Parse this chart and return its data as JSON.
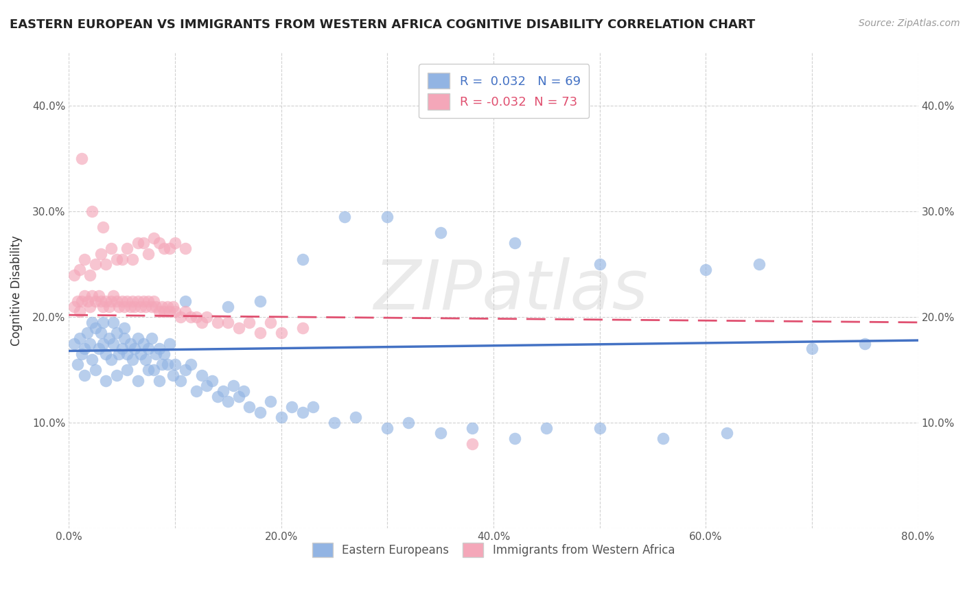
{
  "title": "EASTERN EUROPEAN VS IMMIGRANTS FROM WESTERN AFRICA COGNITIVE DISABILITY CORRELATION CHART",
  "source": "Source: ZipAtlas.com",
  "ylabel": "Cognitive Disability",
  "xlim": [
    0.0,
    0.8
  ],
  "ylim": [
    0.0,
    0.45
  ],
  "xticks": [
    0.0,
    0.1,
    0.2,
    0.3,
    0.4,
    0.5,
    0.6,
    0.7,
    0.8
  ],
  "xticklabels": [
    "0.0%",
    "",
    "20.0%",
    "",
    "40.0%",
    "",
    "60.0%",
    "",
    "80.0%"
  ],
  "yticks": [
    0.0,
    0.1,
    0.2,
    0.3,
    0.4
  ],
  "yticklabels": [
    "",
    "10.0%",
    "20.0%",
    "30.0%",
    "40.0%"
  ],
  "blue_R": "0.032",
  "blue_N": "69",
  "pink_R": "-0.032",
  "pink_N": "73",
  "blue_color": "#92b4e3",
  "pink_color": "#f4a7b9",
  "blue_line_color": "#4472c4",
  "pink_line_color": "#e05070",
  "watermark": "ZIPatlas",
  "blue_trend": [
    0.168,
    0.178
  ],
  "pink_trend": [
    0.202,
    0.195
  ],
  "blue_scatter_x": [
    0.005,
    0.01,
    0.012,
    0.015,
    0.017,
    0.02,
    0.022,
    0.025,
    0.028,
    0.03,
    0.032,
    0.035,
    0.038,
    0.04,
    0.042,
    0.045,
    0.047,
    0.05,
    0.052,
    0.055,
    0.058,
    0.06,
    0.062,
    0.065,
    0.068,
    0.07,
    0.072,
    0.075,
    0.078,
    0.08,
    0.082,
    0.085,
    0.088,
    0.09,
    0.093,
    0.095,
    0.098,
    0.1,
    0.105,
    0.11,
    0.115,
    0.12,
    0.125,
    0.13,
    0.135,
    0.14,
    0.145,
    0.15,
    0.155,
    0.16,
    0.165,
    0.17,
    0.18,
    0.19,
    0.2,
    0.21,
    0.22,
    0.23,
    0.25,
    0.27,
    0.3,
    0.32,
    0.35,
    0.38,
    0.42,
    0.45,
    0.5,
    0.56,
    0.62
  ],
  "blue_scatter_y": [
    0.175,
    0.18,
    0.165,
    0.17,
    0.185,
    0.175,
    0.16,
    0.19,
    0.17,
    0.185,
    0.175,
    0.165,
    0.18,
    0.16,
    0.175,
    0.185,
    0.165,
    0.17,
    0.18,
    0.165,
    0.175,
    0.16,
    0.17,
    0.18,
    0.165,
    0.175,
    0.16,
    0.17,
    0.18,
    0.15,
    0.165,
    0.17,
    0.155,
    0.165,
    0.155,
    0.175,
    0.145,
    0.155,
    0.14,
    0.15,
    0.155,
    0.13,
    0.145,
    0.135,
    0.14,
    0.125,
    0.13,
    0.12,
    0.135,
    0.125,
    0.13,
    0.115,
    0.11,
    0.12,
    0.105,
    0.115,
    0.11,
    0.115,
    0.1,
    0.105,
    0.095,
    0.1,
    0.09,
    0.095,
    0.085,
    0.095,
    0.095,
    0.085,
    0.09
  ],
  "blue_scatter_x2": [
    0.008,
    0.015,
    0.025,
    0.035,
    0.045,
    0.055,
    0.065,
    0.075,
    0.085,
    0.022,
    0.032,
    0.042,
    0.052,
    0.11,
    0.15,
    0.18,
    0.22,
    0.26,
    0.3,
    0.35,
    0.42,
    0.5,
    0.6,
    0.65,
    0.7,
    0.75
  ],
  "blue_scatter_y2": [
    0.155,
    0.145,
    0.15,
    0.14,
    0.145,
    0.15,
    0.14,
    0.15,
    0.14,
    0.195,
    0.195,
    0.195,
    0.19,
    0.215,
    0.21,
    0.215,
    0.255,
    0.295,
    0.295,
    0.28,
    0.27,
    0.25,
    0.245,
    0.25,
    0.17,
    0.175
  ],
  "pink_scatter_x": [
    0.005,
    0.008,
    0.01,
    0.012,
    0.015,
    0.018,
    0.02,
    0.022,
    0.025,
    0.028,
    0.03,
    0.032,
    0.035,
    0.038,
    0.04,
    0.042,
    0.045,
    0.047,
    0.05,
    0.052,
    0.055,
    0.058,
    0.06,
    0.062,
    0.065,
    0.068,
    0.07,
    0.072,
    0.075,
    0.078,
    0.08,
    0.082,
    0.085,
    0.088,
    0.09,
    0.093,
    0.095,
    0.098,
    0.1,
    0.105,
    0.11,
    0.115,
    0.12,
    0.125,
    0.13,
    0.14,
    0.15,
    0.16,
    0.17,
    0.18,
    0.19,
    0.2,
    0.22
  ],
  "pink_scatter_y": [
    0.21,
    0.215,
    0.205,
    0.215,
    0.22,
    0.215,
    0.21,
    0.22,
    0.215,
    0.22,
    0.215,
    0.21,
    0.215,
    0.21,
    0.215,
    0.22,
    0.215,
    0.21,
    0.215,
    0.21,
    0.215,
    0.21,
    0.215,
    0.21,
    0.215,
    0.21,
    0.215,
    0.21,
    0.215,
    0.21,
    0.215,
    0.21,
    0.205,
    0.21,
    0.205,
    0.21,
    0.205,
    0.21,
    0.205,
    0.2,
    0.205,
    0.2,
    0.2,
    0.195,
    0.2,
    0.195,
    0.195,
    0.19,
    0.195,
    0.185,
    0.195,
    0.185,
    0.19
  ],
  "pink_scatter_x2": [
    0.005,
    0.01,
    0.015,
    0.02,
    0.025,
    0.03,
    0.035,
    0.04,
    0.045,
    0.05,
    0.055,
    0.06,
    0.065,
    0.07,
    0.075,
    0.08,
    0.085,
    0.09,
    0.095,
    0.1,
    0.11,
    0.012,
    0.022,
    0.032,
    0.38
  ],
  "pink_scatter_y2": [
    0.24,
    0.245,
    0.255,
    0.24,
    0.25,
    0.26,
    0.25,
    0.265,
    0.255,
    0.255,
    0.265,
    0.255,
    0.27,
    0.27,
    0.26,
    0.275,
    0.27,
    0.265,
    0.265,
    0.27,
    0.265,
    0.35,
    0.3,
    0.285,
    0.08
  ]
}
